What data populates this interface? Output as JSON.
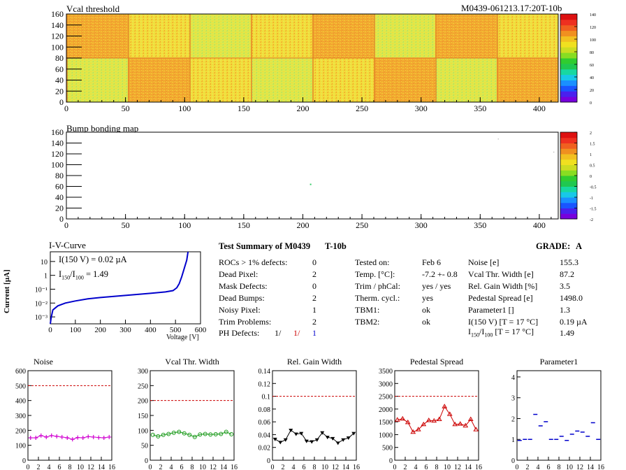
{
  "module_label": "M0439-061213.17:20T-10b",
  "colors": {
    "noise": "#d000d0",
    "vcal_width": "#1a9a1a",
    "rel_gain": "#000000",
    "pedestal": "#cc0000",
    "parameter1": "#0000cc",
    "iv_curve": "#0000cc",
    "limit_line": "#cc0000"
  },
  "vcal_map": {
    "title": "Vcal threshold",
    "x_ticks": [
      "0",
      "50",
      "100",
      "150",
      "200",
      "250",
      "300",
      "350",
      "400"
    ],
    "y_ticks": [
      "0",
      "20",
      "40",
      "60",
      "80",
      "100",
      "120",
      "140",
      "160"
    ],
    "xlim": [
      0,
      416
    ],
    "ylim": [
      0,
      160
    ],
    "z_ticks": [
      "0",
      "20",
      "40",
      "60",
      "80",
      "100",
      "120",
      "140"
    ],
    "zlim": [
      0,
      140
    ]
  },
  "bump_map": {
    "title": "Bump bonding map",
    "x_ticks": [
      "0",
      "50",
      "100",
      "150",
      "200",
      "250",
      "300",
      "350",
      "400"
    ],
    "y_ticks": [
      "0",
      "20",
      "40",
      "60",
      "80",
      "100",
      "120",
      "140",
      "160"
    ],
    "xlim": [
      0,
      416
    ],
    "ylim": [
      0,
      160
    ],
    "z_ticks": [
      "-2",
      "-1.5",
      "-1",
      "-0.5",
      "0",
      "0.5",
      "1",
      "1.5",
      "2"
    ],
    "zlim": [
      -2,
      2
    ]
  },
  "iv_curve": {
    "title": "I-V-Curve",
    "xlabel": "Voltage [V]",
    "ylabel": "Current [µA]",
    "x_ticks": [
      "0",
      "100",
      "200",
      "300",
      "400",
      "500",
      "600"
    ],
    "y_ticks": [
      "10⁻³",
      "10⁻²",
      "10⁻¹",
      "1",
      "10"
    ],
    "annot1": "I(150 V) = 0.02 µA",
    "annot2_a": "I",
    "annot2_sub1": "150",
    "annot2_b": "/I",
    "annot2_sub2": "100",
    "annot2_c": " =  1.49"
  },
  "summary": {
    "title": "Test Summary of M0439",
    "subtitle": "T-10b",
    "grade_label": "GRADE:",
    "grade": "A",
    "defects": [
      {
        "label": "ROCs > 1% defects:",
        "value": "0"
      },
      {
        "label": "Dead Pixel:",
        "value": "2"
      },
      {
        "label": "Mask Defects:",
        "value": "0"
      },
      {
        "label": "Dead Bumps:",
        "value": "2"
      },
      {
        "label": "Noisy Pixel:",
        "value": "1"
      },
      {
        "label": "Trim Problems:",
        "value": "2"
      }
    ],
    "ph_label": "PH Defects:",
    "ph_values": [
      "1/",
      "1/",
      "1"
    ],
    "tests": [
      {
        "label": "Tested on:",
        "value": "Feb 6"
      },
      {
        "label": "Temp. [°C]:",
        "value": "-7.2 +- 0.8"
      },
      {
        "label": "Trim / phCal:",
        "value": "yes / yes"
      },
      {
        "label": "Therm. cycl.:",
        "value": "yes"
      },
      {
        "label": "TBM1:",
        "value": "ok"
      },
      {
        "label": "TBM2:",
        "value": "ok"
      }
    ],
    "params": [
      {
        "label": "Noise [e]",
        "value": "155.3"
      },
      {
        "label": "Vcal Thr. Width [e]",
        "value": "87.2"
      },
      {
        "label": "Rel. Gain Width [%]",
        "value": "3.5"
      },
      {
        "label": "Pedestal Spread [e]",
        "value": "1498.0"
      },
      {
        "label": "Parameter1 []",
        "value": "1.3"
      },
      {
        "label": "I(150 V)  [T = 17 °C]",
        "value": "0.19 µA"
      }
    ],
    "ratio_label_a": "I",
    "ratio_sub1": "150",
    "ratio_label_b": "/I",
    "ratio_sub2": "100",
    "ratio_label_c": "  [T = 17 °C]",
    "ratio_value": "1.49"
  },
  "chart_data": [
    {
      "type": "line",
      "title": "Noise",
      "x": [
        0,
        1,
        2,
        3,
        4,
        5,
        6,
        7,
        8,
        9,
        10,
        11,
        12,
        13,
        14,
        15
      ],
      "values": [
        150,
        150,
        165,
        155,
        165,
        160,
        155,
        150,
        140,
        152,
        150,
        158,
        155,
        152,
        150,
        155
      ],
      "ylim": [
        0,
        600
      ],
      "xlim": [
        0,
        16
      ],
      "limit": 500,
      "y_ticks": [
        "0",
        "100",
        "200",
        "300",
        "400",
        "500",
        "600"
      ],
      "x_ticks": [
        "0",
        "2",
        "4",
        "6",
        "8",
        "10",
        "12",
        "14",
        "16"
      ],
      "marker": "cross"
    },
    {
      "type": "line",
      "title": "Vcal Thr. Width",
      "x": [
        0,
        1,
        2,
        3,
        4,
        5,
        6,
        7,
        8,
        9,
        10,
        11,
        12,
        13,
        14,
        15
      ],
      "values": [
        85,
        80,
        85,
        88,
        92,
        95,
        90,
        85,
        78,
        86,
        88,
        86,
        87,
        88,
        95,
        87
      ],
      "ylim": [
        0,
        300
      ],
      "xlim": [
        0,
        16
      ],
      "limit": 200,
      "y_ticks": [
        "0",
        "50",
        "100",
        "150",
        "200",
        "250",
        "300"
      ],
      "x_ticks": [
        "0",
        "2",
        "4",
        "6",
        "8",
        "10",
        "12",
        "14",
        "16"
      ],
      "marker": "circle"
    },
    {
      "type": "line",
      "title": "Rel. Gain Width",
      "x": [
        0,
        1,
        2,
        3,
        4,
        5,
        6,
        7,
        8,
        9,
        10,
        11,
        12,
        13,
        14,
        15
      ],
      "values": [
        0.033,
        0.028,
        0.032,
        0.047,
        0.041,
        0.042,
        0.03,
        0.029,
        0.032,
        0.043,
        0.036,
        0.034,
        0.027,
        0.032,
        0.035,
        0.042
      ],
      "ylim": [
        0,
        0.14
      ],
      "xlim": [
        0,
        16
      ],
      "limit": 0.1,
      "y_ticks": [
        "0",
        "0.02",
        "0.04",
        "0.06",
        "0.08",
        "0.1",
        "0.12",
        "0.14"
      ],
      "x_ticks": [
        "0",
        "2",
        "4",
        "6",
        "8",
        "10",
        "12",
        "14",
        "16"
      ],
      "marker": "triangle-down"
    },
    {
      "type": "line",
      "title": "Pedestal Spread",
      "x": [
        0,
        1,
        2,
        3,
        4,
        5,
        6,
        7,
        8,
        9,
        10,
        11,
        12,
        13,
        14,
        15
      ],
      "values": [
        1580,
        1620,
        1480,
        1100,
        1200,
        1400,
        1560,
        1540,
        1600,
        2100,
        1800,
        1400,
        1420,
        1350,
        1600,
        1200
      ],
      "ylim": [
        0,
        3500
      ],
      "xlim": [
        0,
        16
      ],
      "limit": 2500,
      "y_ticks": [
        "0",
        "500",
        "1000",
        "1500",
        "2000",
        "2500",
        "3000",
        "3500"
      ],
      "x_ticks": [
        "0",
        "2",
        "4",
        "6",
        "8",
        "10",
        "12",
        "14",
        "16"
      ],
      "marker": "triangle-up"
    },
    {
      "type": "scatter",
      "title": "Parameter1",
      "x": [
        0,
        1,
        2,
        3,
        4,
        5,
        6,
        7,
        8,
        9,
        10,
        11,
        12,
        13,
        14,
        15
      ],
      "values": [
        0.95,
        1.0,
        1.0,
        2.2,
        1.65,
        1.85,
        1.0,
        1.0,
        1.15,
        0.95,
        1.25,
        1.4,
        1.35,
        1.15,
        1.8,
        1.0
      ],
      "ylim": [
        0,
        4.3
      ],
      "xlim": [
        0,
        16
      ],
      "y_ticks": [
        "0",
        "1",
        "2",
        "3",
        "4"
      ],
      "x_ticks": [
        "0",
        "2",
        "4",
        "6",
        "8",
        "10",
        "12",
        "14",
        "16"
      ],
      "marker": "dash"
    }
  ]
}
